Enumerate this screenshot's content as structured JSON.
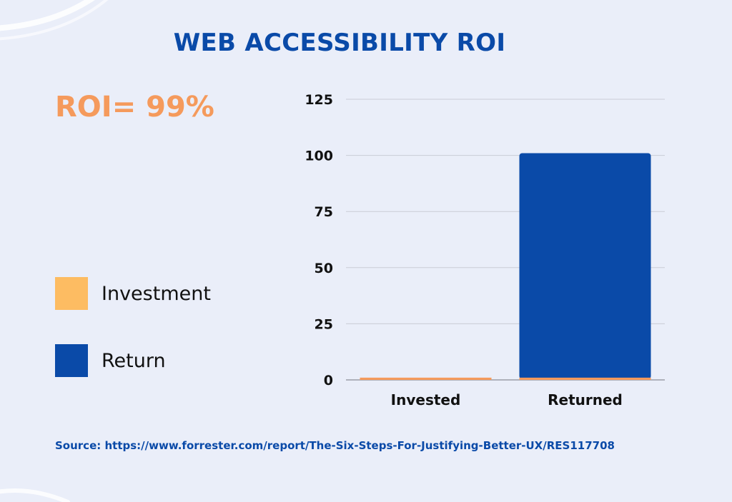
{
  "title": "WEB ACCESSIBILITY ROI",
  "roi_text": "ROI= 99%",
  "legend": [
    {
      "label": "Investment",
      "color": "#fdbc62"
    },
    {
      "label": "Return",
      "color": "#0a4aa8"
    }
  ],
  "source": "Source: https://www.forrester.com/report/The-Six-Steps-For-Justifying-Better-UX/RES117708",
  "chart_data": {
    "type": "bar",
    "categories": [
      "Invested",
      "Returned"
    ],
    "series": [
      {
        "name": "Investment",
        "values": [
          1,
          1
        ],
        "color": "#f59a5c"
      },
      {
        "name": "Return",
        "values": [
          0,
          100
        ],
        "color": "#0a4aa8"
      }
    ],
    "stacked": true,
    "yticks": [
      0,
      25,
      50,
      75,
      100,
      125
    ],
    "ylim": [
      0,
      125
    ],
    "grid": true,
    "title": "",
    "xlabel": "",
    "ylabel": ""
  }
}
